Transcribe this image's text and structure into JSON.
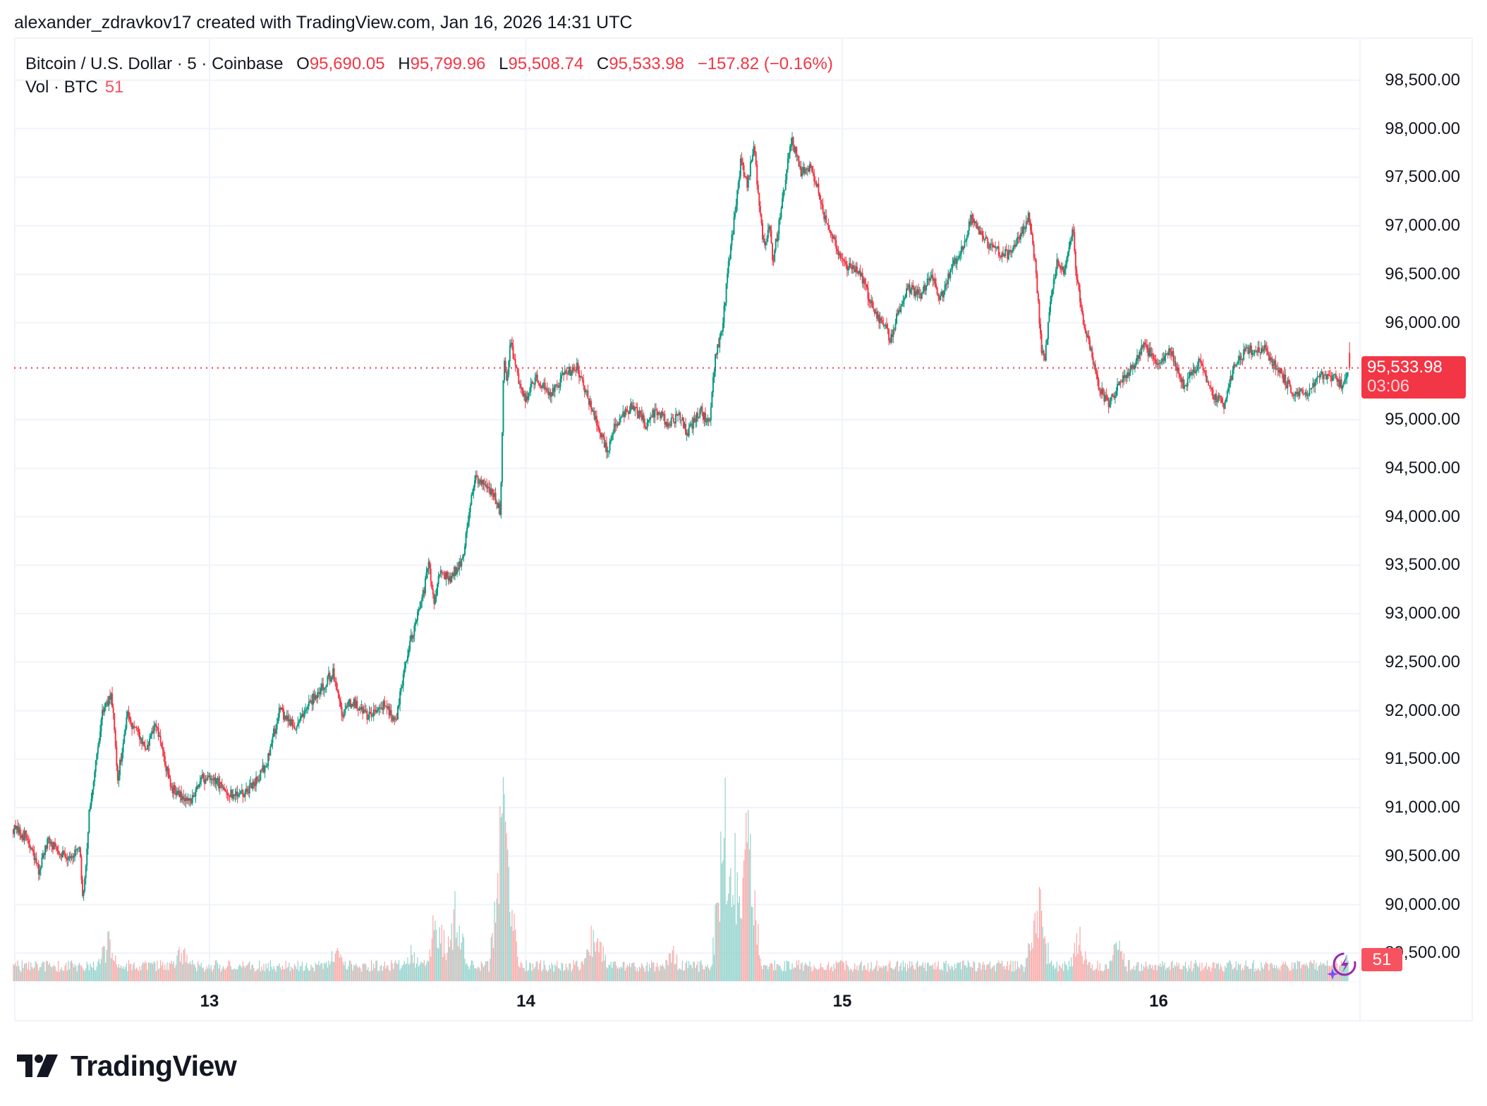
{
  "header": {
    "credit": "alexander_zdravkov17 created with TradingView.com, Jan 16, 2026 14:31 UTC"
  },
  "legend": {
    "symbol": "Bitcoin / U.S. Dollar · 5 · Coinbase",
    "open_label": "O",
    "open": "95,690.05",
    "high_label": "H",
    "high": "95,799.96",
    "low_label": "L",
    "low": "95,508.74",
    "close_label": "C",
    "close": "95,533.98",
    "change": "−157.82 (−0.16%)",
    "volume_label": "Vol · BTC",
    "volume": "51"
  },
  "price_tag": {
    "price": "95,533.98",
    "countdown": "03:06"
  },
  "volume_tag": {
    "value": "51"
  },
  "logo": {
    "text": "TradingView"
  },
  "colors": {
    "up": "#089981",
    "down": "#f23645",
    "up_volume": "#92d2cc",
    "down_volume": "#f7a9a7",
    "grid": "#f0f3fa",
    "text": "#131722",
    "last_price_line": "#f23645"
  },
  "chart_data": {
    "type": "candlestick",
    "title": "Bitcoin / U.S. Dollar · 5 · Coinbase",
    "interval": "5 minutes",
    "exchange": "Coinbase",
    "xlabel": "",
    "ylabel": "",
    "x_ticks": [
      "13",
      "14",
      "15",
      "16"
    ],
    "y_ticks": [
      "98,500.00",
      "98,000.00",
      "97,500.00",
      "97,000.00",
      "96,500.00",
      "96,000.00",
      "95,000.00",
      "94,500.00",
      "94,000.00",
      "93,500.00",
      "93,000.00",
      "92,500.00",
      "92,000.00",
      "91,500.00",
      "91,000.00",
      "90,500.00",
      "90,000.00",
      "89,500.00"
    ],
    "ylim": [
      89200,
      98900
    ],
    "grid": true,
    "last_price": 95533.98,
    "last_ohlc": {
      "open": 95690.05,
      "high": 95799.96,
      "low": 95508.74,
      "close": 95533.98,
      "change": -157.82,
      "change_pct": -0.16
    },
    "last_volume": 51,
    "price_path_note": "Approximate close path by day position (13.0 = midnight Jan 13 UTC)",
    "price_path": [
      [
        12.38,
        90780
      ],
      [
        12.42,
        90700
      ],
      [
        12.46,
        90350
      ],
      [
        12.49,
        90650
      ],
      [
        12.55,
        90500
      ],
      [
        12.59,
        90550
      ],
      [
        12.6,
        90000
      ],
      [
        12.62,
        90950
      ],
      [
        12.66,
        91950
      ],
      [
        12.69,
        92200
      ],
      [
        12.71,
        91300
      ],
      [
        12.74,
        91950
      ],
      [
        12.8,
        91600
      ],
      [
        12.83,
        91850
      ],
      [
        12.88,
        91200
      ],
      [
        12.94,
        91050
      ],
      [
        12.97,
        91300
      ],
      [
        13.03,
        91250
      ],
      [
        13.09,
        91100
      ],
      [
        13.14,
        91250
      ],
      [
        13.18,
        91450
      ],
      [
        13.22,
        92000
      ],
      [
        13.27,
        91850
      ],
      [
        13.31,
        92050
      ],
      [
        13.39,
        92400
      ],
      [
        13.42,
        91950
      ],
      [
        13.45,
        92100
      ],
      [
        13.5,
        91950
      ],
      [
        13.55,
        92050
      ],
      [
        13.59,
        91900
      ],
      [
        13.62,
        92500
      ],
      [
        13.65,
        92900
      ],
      [
        13.68,
        93250
      ],
      [
        13.69,
        93550
      ],
      [
        13.71,
        93100
      ],
      [
        13.73,
        93450
      ],
      [
        13.76,
        93350
      ],
      [
        13.8,
        93550
      ],
      [
        13.82,
        94050
      ],
      [
        13.84,
        94400
      ],
      [
        13.86,
        94350
      ],
      [
        13.9,
        94200
      ],
      [
        13.92,
        94050
      ],
      [
        13.93,
        95600
      ],
      [
        13.94,
        95400
      ],
      [
        13.95,
        95800
      ],
      [
        13.98,
        95350
      ],
      [
        14.0,
        95200
      ],
      [
        14.03,
        95450
      ],
      [
        14.08,
        95250
      ],
      [
        14.12,
        95450
      ],
      [
        14.16,
        95550
      ],
      [
        14.19,
        95300
      ],
      [
        14.23,
        94900
      ],
      [
        14.26,
        94650
      ],
      [
        14.28,
        94950
      ],
      [
        14.31,
        95050
      ],
      [
        14.34,
        95150
      ],
      [
        14.38,
        94950
      ],
      [
        14.41,
        95100
      ],
      [
        14.45,
        94950
      ],
      [
        14.49,
        95050
      ],
      [
        14.51,
        94850
      ],
      [
        14.55,
        95100
      ],
      [
        14.58,
        94950
      ],
      [
        14.6,
        95700
      ],
      [
        14.62,
        95900
      ],
      [
        14.64,
        96600
      ],
      [
        14.66,
        97100
      ],
      [
        14.68,
        97700
      ],
      [
        14.7,
        97400
      ],
      [
        14.72,
        97850
      ],
      [
        14.75,
        96800
      ],
      [
        14.77,
        97000
      ],
      [
        14.78,
        96600
      ],
      [
        14.81,
        97250
      ],
      [
        14.83,
        97700
      ],
      [
        14.84,
        97900
      ],
      [
        14.87,
        97550
      ],
      [
        14.9,
        97600
      ],
      [
        14.93,
        97300
      ],
      [
        14.95,
        97000
      ],
      [
        14.98,
        96800
      ],
      [
        15.01,
        96600
      ],
      [
        15.05,
        96550
      ],
      [
        15.07,
        96400
      ],
      [
        15.1,
        96100
      ],
      [
        15.14,
        95950
      ],
      [
        15.15,
        95800
      ],
      [
        15.18,
        96150
      ],
      [
        15.21,
        96350
      ],
      [
        15.25,
        96300
      ],
      [
        15.28,
        96500
      ],
      [
        15.31,
        96250
      ],
      [
        15.35,
        96600
      ],
      [
        15.38,
        96750
      ],
      [
        15.41,
        97100
      ],
      [
        15.45,
        96850
      ],
      [
        15.48,
        96750
      ],
      [
        15.53,
        96700
      ],
      [
        15.57,
        96950
      ],
      [
        15.59,
        97100
      ],
      [
        15.61,
        96600
      ],
      [
        15.63,
        95700
      ],
      [
        15.64,
        95600
      ],
      [
        15.66,
        96300
      ],
      [
        15.68,
        96650
      ],
      [
        15.7,
        96550
      ],
      [
        15.73,
        96950
      ],
      [
        15.74,
        96500
      ],
      [
        15.76,
        96000
      ],
      [
        15.79,
        95650
      ],
      [
        15.81,
        95350
      ],
      [
        15.84,
        95150
      ],
      [
        15.88,
        95400
      ],
      [
        15.92,
        95550
      ],
      [
        15.95,
        95750
      ],
      [
        16.0,
        95600
      ],
      [
        16.04,
        95700
      ],
      [
        16.08,
        95350
      ],
      [
        16.13,
        95600
      ],
      [
        16.17,
        95250
      ],
      [
        16.21,
        95150
      ],
      [
        16.24,
        95600
      ],
      [
        16.28,
        95700
      ],
      [
        16.33,
        95750
      ],
      [
        16.37,
        95550
      ],
      [
        16.42,
        95300
      ],
      [
        16.46,
        95250
      ],
      [
        16.51,
        95450
      ],
      [
        16.55,
        95450
      ],
      [
        16.58,
        95350
      ],
      [
        16.6,
        95534
      ]
    ],
    "volume_peaks_note": "Approximate notable volume spikes (relative, 0-1 of pane)",
    "volume_peaks": [
      [
        12.68,
        0.25
      ],
      [
        12.91,
        0.2
      ],
      [
        13.4,
        0.2
      ],
      [
        13.64,
        0.18
      ],
      [
        13.72,
        0.4
      ],
      [
        13.78,
        0.45
      ],
      [
        13.93,
        1.0
      ],
      [
        14.22,
        0.35
      ],
      [
        14.46,
        0.18
      ],
      [
        14.63,
        0.95
      ],
      [
        14.66,
        0.7
      ],
      [
        14.7,
        0.85
      ],
      [
        15.62,
        0.45
      ],
      [
        15.75,
        0.26
      ],
      [
        15.87,
        0.2
      ],
      [
        16.6,
        0.15
      ]
    ]
  }
}
